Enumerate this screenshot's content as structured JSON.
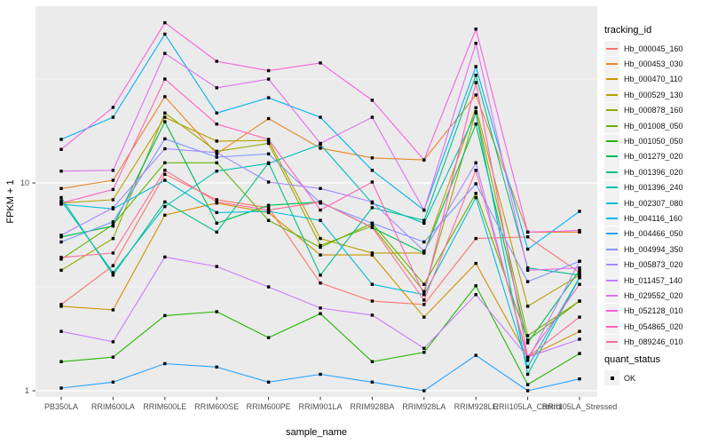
{
  "chart_data": {
    "type": "line",
    "title": "",
    "xlabel": "sample_name",
    "ylabel": "FPKM + 1",
    "y_scale": "log10",
    "y_ticks": [
      10,
      1
    ],
    "y_tick_labels": [
      "10",
      "1"
    ],
    "y_minor_ticks": [
      31.62,
      3.162
    ],
    "ylim": [
      0.93,
      71
    ],
    "grid": "on",
    "legend_position": "right",
    "panel_bg": "#EBEBEB",
    "grid_color": "#FFFFFF",
    "key_bg": "#F2F2F2",
    "axis_text_color": "#4D4D4D",
    "marker": "black-square",
    "marker_color": "#000000",
    "categories": [
      "PB350LA",
      "RRIM600LA",
      "RRIM600LE",
      "RRIM600SE",
      "RRIM600PE",
      "RRIM901LA",
      "RRIM928BA",
      "RRIM928LA",
      "RRIM928LE",
      "RRII105LA_Control",
      "RRII105LA_Stressed"
    ],
    "legend1_title": "tracking_id",
    "legend2_title": "quant_status",
    "legend2_items": [
      {
        "label": "OK"
      }
    ],
    "series": [
      {
        "name": "Hb_000045_160",
        "color": "#F8766D",
        "values": [
          2.6,
          4.0,
          11.0,
          8.3,
          7.6,
          3.3,
          2.7,
          2.6,
          5.4,
          5.5,
          3.7
        ]
      },
      {
        "name": "Hb_000453_030",
        "color": "#E88526",
        "values": [
          9.4,
          10.3,
          26.0,
          13.8,
          20.4,
          14.7,
          13.2,
          12.9,
          26.5,
          5.8,
          5.8
        ]
      },
      {
        "name": "Hb_000470_110",
        "color": "#D39200",
        "values": [
          2.55,
          2.45,
          7.0,
          8.0,
          7.2,
          4.5,
          4.5,
          2.26,
          4.1,
          1.45,
          1.93
        ]
      },
      {
        "name": "Hb_000529_130",
        "color": "#B79F00",
        "values": [
          8.0,
          8.3,
          20.7,
          15.9,
          16.0,
          5.4,
          4.6,
          4.6,
          23.0,
          2.55,
          3.6
        ]
      },
      {
        "name": "Hb_000878_160",
        "color": "#95A900",
        "values": [
          3.8,
          5.4,
          21.7,
          14.2,
          15.5,
          5.0,
          6.2,
          3.0,
          22.0,
          1.84,
          2.7
        ]
      },
      {
        "name": "Hb_001008_050",
        "color": "#64B200",
        "values": [
          4.3,
          6.3,
          12.5,
          12.5,
          6.6,
          4.9,
          6.4,
          3.25,
          8.9,
          1.75,
          2.7
        ]
      },
      {
        "name": "Hb_001050_050",
        "color": "#23B700",
        "values": [
          1.38,
          1.45,
          2.3,
          2.4,
          1.8,
          2.35,
          1.38,
          1.53,
          3.2,
          1.07,
          1.51
        ]
      },
      {
        "name": "Hb_001279_020",
        "color": "#00BC51",
        "values": [
          5.5,
          6.2,
          19.7,
          6.4,
          7.8,
          8.1,
          6.1,
          4.6,
          19.2,
          1.7,
          3.8
        ]
      },
      {
        "name": "Hb_001396_020",
        "color": "#00C08B",
        "values": [
          8.5,
          3.6,
          8.1,
          5.8,
          12.5,
          3.6,
          7.6,
          6.6,
          33.0,
          3.9,
          3.6
        ]
      },
      {
        "name": "Hb_001396_240",
        "color": "#00C0B4",
        "values": [
          8.2,
          3.7,
          7.7,
          11.4,
          12.4,
          15.3,
          8.0,
          6.4,
          21.7,
          1.2,
          3.5
        ]
      },
      {
        "name": "Hb_002307_080",
        "color": "#00BCD8",
        "values": [
          7.9,
          7.5,
          10.3,
          7.2,
          7.3,
          6.6,
          3.25,
          2.9,
          8.5,
          1.3,
          3.5
        ]
      },
      {
        "name": "Hb_004116_160",
        "color": "#00B3F2",
        "values": [
          16.2,
          20.7,
          52.0,
          21.7,
          25.7,
          20.7,
          11.5,
          7.4,
          36.3,
          4.8,
          7.3
        ]
      },
      {
        "name": "Hb_004466_050",
        "color": "#28A3FF",
        "values": [
          1.03,
          1.1,
          1.35,
          1.3,
          1.1,
          1.2,
          1.1,
          1.0,
          1.48,
          1.0,
          1.14
        ]
      },
      {
        "name": "Hb_004994_350",
        "color": "#7E96FF",
        "values": [
          5.2,
          6.5,
          16.3,
          13.3,
          13.8,
          8.0,
          6.4,
          5.2,
          9.9,
          3.35,
          4.2
        ]
      },
      {
        "name": "Hb_005873_020",
        "color": "#A58AFF",
        "values": [
          5.6,
          7.6,
          14.6,
          14.0,
          10.1,
          9.4,
          8.1,
          4.7,
          12.5,
          1.4,
          4.2
        ]
      },
      {
        "name": "Hb_011457_140",
        "color": "#C77CFF",
        "values": [
          1.93,
          1.72,
          4.4,
          3.96,
          3.16,
          2.5,
          2.31,
          1.6,
          2.9,
          1.45,
          1.77
        ]
      },
      {
        "name": "Hb_029552_020",
        "color": "#E26EF3",
        "values": [
          11.4,
          11.5,
          42.0,
          28.7,
          31.6,
          15.5,
          20.7,
          7.4,
          47.0,
          3.8,
          3.9
        ]
      },
      {
        "name": "Hb_052128_010",
        "color": "#F562DE",
        "values": [
          14.5,
          23.1,
          59.0,
          38.5,
          34.7,
          37.8,
          25.0,
          12.9,
          55.0,
          5.8,
          5.9
        ]
      },
      {
        "name": "Hb_054865_020",
        "color": "#FF62BB",
        "values": [
          8.0,
          9.3,
          31.6,
          19.2,
          16.2,
          7.4,
          10.1,
          2.9,
          30.4,
          1.45,
          3.25
        ]
      },
      {
        "name": "Hb_089246_010",
        "color": "#FF6B97",
        "values": [
          4.38,
          4.6,
          11.5,
          8.1,
          7.4,
          8.1,
          6.1,
          2.73,
          11.5,
          1.45,
          2.26
        ]
      }
    ]
  }
}
